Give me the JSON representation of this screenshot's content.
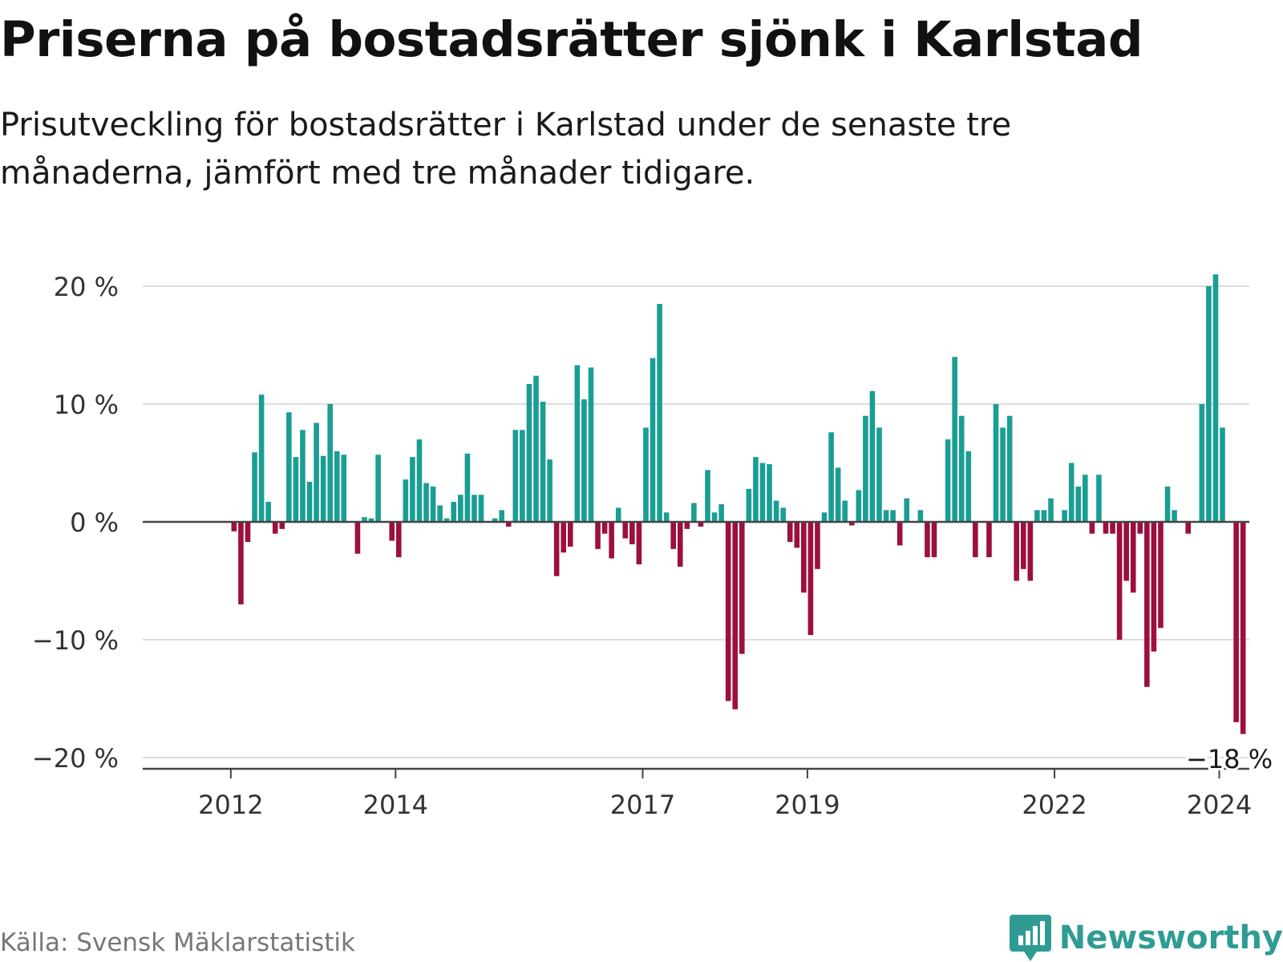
{
  "header": {
    "title": "Priserna på bostadsrätter sjönk i Karlstad",
    "subtitle": "Prisutveckling för bostadsrätter i Karlstad under de senaste tre månaderna, jämfört med tre månader tidigare."
  },
  "footer": {
    "source": "Källa: Svensk Mäklarstatistik",
    "brand": "Newsworthy"
  },
  "colors": {
    "positive": "#1a9e94",
    "negative": "#9c0f3e",
    "grid": "#dddddd",
    "axis": "#444444",
    "logo": "#2e9c93"
  },
  "chart_data": {
    "type": "bar",
    "title": "Priserna på bostadsrätter sjönk i Karlstad",
    "xlabel": "",
    "ylabel": "",
    "ylim": [
      -20,
      20
    ],
    "y_ticks": [
      20,
      10,
      0,
      -10,
      -20
    ],
    "y_tick_labels": [
      "20 %",
      "10 %",
      "0 %",
      "−10 %",
      "−20 %"
    ],
    "x_start": "2011-07",
    "x_ticks": [
      {
        "label": "2012",
        "index": 6
      },
      {
        "label": "2014",
        "index": 30
      },
      {
        "label": "2017",
        "index": 66
      },
      {
        "label": "2019",
        "index": 90
      },
      {
        "label": "2022",
        "index": 126
      },
      {
        "label": "2024",
        "index": 150
      }
    ],
    "values": [
      0,
      0,
      0,
      0,
      0,
      0,
      -0.8,
      -7,
      -1.7,
      5.9,
      10.8,
      1.7,
      -1,
      -0.6,
      9.3,
      5.5,
      7.8,
      3.4,
      8.4,
      5.6,
      10,
      6,
      5.7,
      0,
      -2.7,
      0.4,
      0.3,
      5.7,
      0,
      -1.6,
      -3,
      3.6,
      5.5,
      7,
      3.3,
      3,
      1.4,
      0.3,
      1.7,
      2.3,
      5.8,
      2.3,
      2.3,
      0,
      0.3,
      1,
      -0.4,
      7.8,
      7.8,
      11.7,
      12.4,
      10.2,
      5.3,
      -4.6,
      -2.6,
      -2.1,
      13.3,
      10.4,
      13.1,
      -2.3,
      -1,
      -3.1,
      1.2,
      -1.4,
      -1.9,
      -3.6,
      8,
      13.9,
      18.5,
      0.8,
      -2.3,
      -3.8,
      -0.6,
      1.6,
      -0.4,
      4.4,
      0.8,
      1.5,
      -15.2,
      -15.9,
      -11.2,
      2.8,
      5.5,
      5,
      4.9,
      1.8,
      1.2,
      -1.7,
      -2.2,
      -6,
      -9.6,
      -4,
      0.8,
      7.6,
      4.6,
      1.8,
      -0.3,
      2.7,
      9,
      11.1,
      8,
      1,
      1,
      -2,
      2,
      0,
      1,
      -3,
      -3,
      0,
      7,
      14,
      9,
      6,
      -3,
      0,
      -3,
      10,
      8,
      9,
      -5,
      -4,
      -5,
      1,
      1,
      2,
      0,
      1,
      5,
      3,
      4,
      -1,
      4,
      -1,
      -1,
      -10,
      -5,
      -6,
      -1,
      -14,
      -11,
      -9,
      3,
      1,
      0,
      -1,
      0,
      10,
      20,
      21,
      8,
      0,
      -17,
      -18
    ],
    "annotation": {
      "label": "−18 %",
      "index": 151,
      "value": -18
    }
  }
}
